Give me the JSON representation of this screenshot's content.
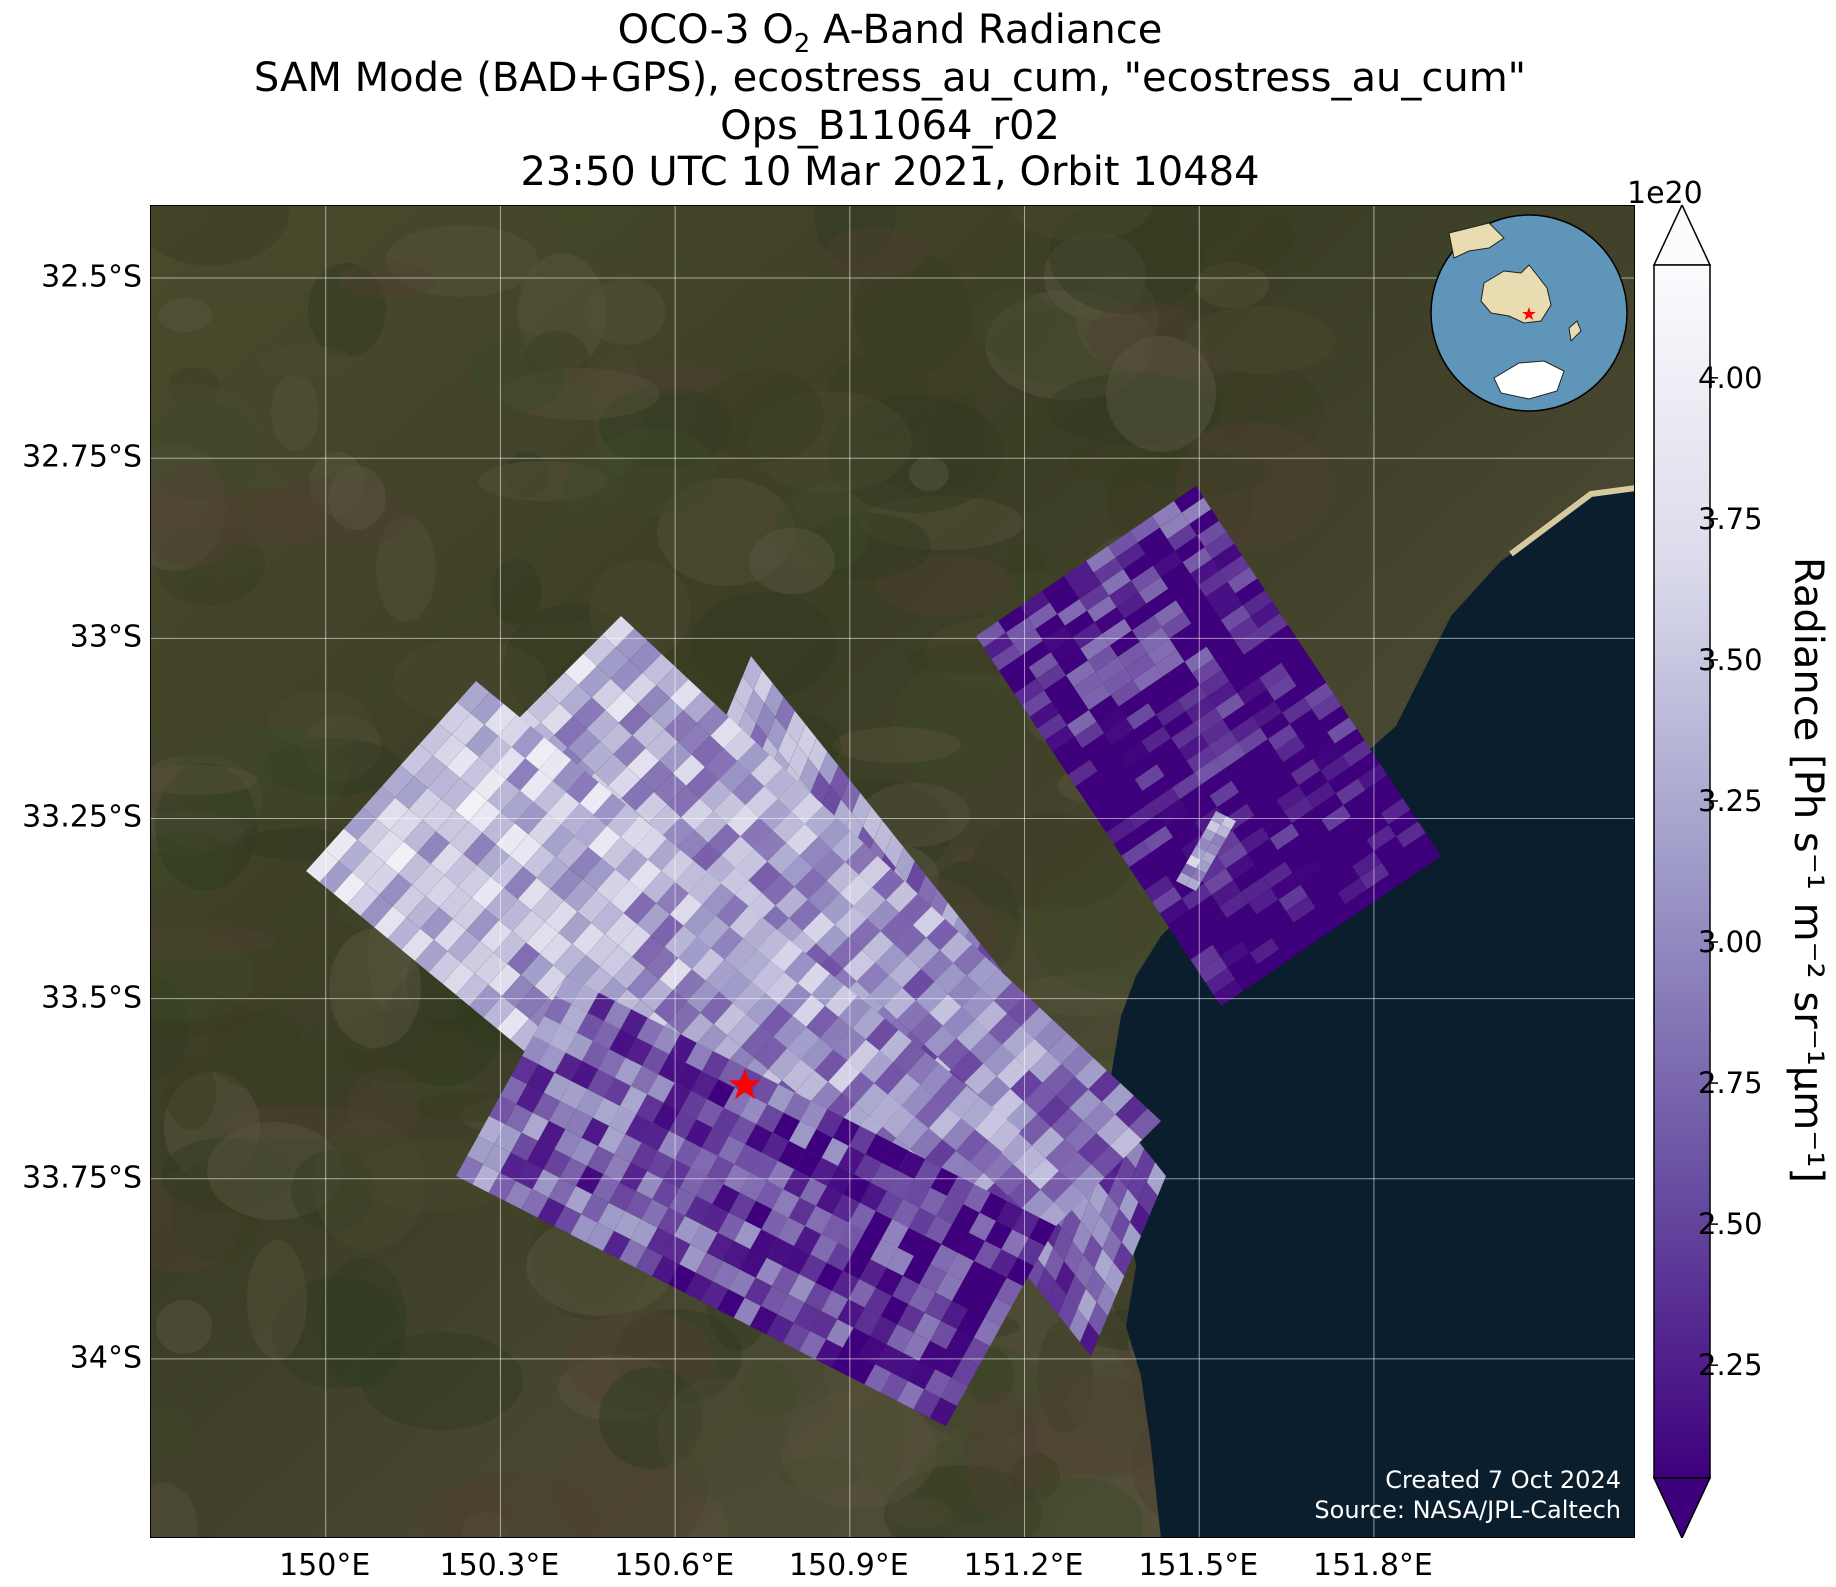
{
  "title": {
    "line1_a": "OCO-3 O",
    "line1_sub": "2",
    "line1_b": " A-Band Radiance",
    "line2": "SAM Mode (BAD+GPS), ecostress_au_cum, \"ecostress_au_cum\"",
    "line3": "Ops_B11064_r02",
    "line4": "23:50 UTC 10 Mar 2021, Orbit 10484"
  },
  "map": {
    "lat_range": [
      -34.25,
      -32.4
    ],
    "lon_range": [
      149.7,
      152.25
    ],
    "lat_ticks": [
      "32.5°S",
      "32.75°S",
      "33°S",
      "33.25°S",
      "33.5°S",
      "33.75°S",
      "34°S"
    ],
    "lat_tick_values": [
      -32.5,
      -32.75,
      -33.0,
      -33.25,
      -33.5,
      -33.75,
      -34.0
    ],
    "lon_ticks": [
      "150°E",
      "150.3°E",
      "150.6°E",
      "150.9°E",
      "151.2°E",
      "151.5°E",
      "151.8°E"
    ],
    "lon_tick_values": [
      150.0,
      150.3,
      150.6,
      150.9,
      151.2,
      151.5,
      151.8
    ],
    "target_marker": {
      "lon": 150.72,
      "lat": -33.62,
      "color": "#ff0000",
      "icon": "star-icon"
    },
    "background": "satellite imagery (land / ocean)",
    "ocean_color": "#0b1e2e",
    "grid": true
  },
  "colorbar": {
    "label": "Radiance [Ph s⁻¹ m⁻² sr⁻¹μm⁻¹]",
    "exponent": "1e20",
    "tick_labels": [
      "4.00",
      "3.75",
      "3.50",
      "3.25",
      "3.00",
      "2.75",
      "2.50",
      "2.25"
    ],
    "tick_values": [
      4.0,
      3.75,
      3.5,
      3.25,
      3.0,
      2.75,
      2.5,
      2.25
    ],
    "range": [
      2.05,
      4.2
    ],
    "colormap": "Purples_r",
    "color_low": "#3f007d",
    "color_mid": "#9e9ac8",
    "color_high": "#fcfbfd",
    "extend": "both"
  },
  "credits": {
    "created": "Created 7 Oct 2024",
    "source": "Source: NASA/JPL-Caltech"
  }
}
